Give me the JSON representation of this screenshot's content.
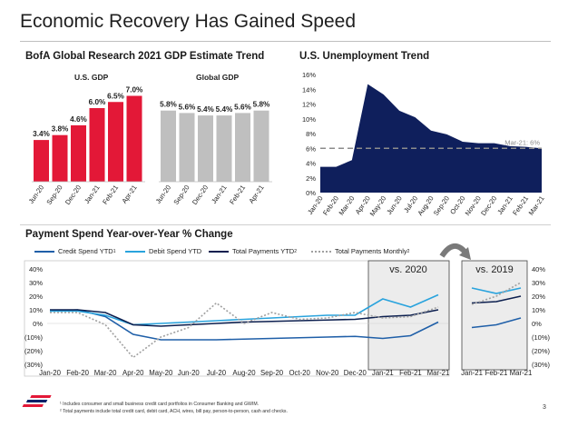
{
  "page": {
    "title": "Economic Recovery Has Gained Speed",
    "page_number": "3",
    "footnotes": [
      "¹ Includes consumer and small business credit card portfolios in Consumer Banking and GWIM.",
      "² Total payments include total credit card, debit card, ACH, wires, bill pay, person-to-person, cash and checks."
    ],
    "logo": "bank-of-america-flag-logo"
  },
  "gdp_section": {
    "heading": "BofA Global Research 2021 GDP Estimate Trend"
  },
  "unemp_section": {
    "heading": "U.S. Unemployment Trend"
  },
  "pay_section": {
    "heading": "Payment Spend Year-over-Year % Change"
  },
  "chart_data": [
    {
      "id": "us_gdp",
      "type": "bar",
      "title": "U.S. GDP",
      "categories": [
        "Jun-20",
        "Sep-20",
        "Dec-20",
        "Jan-21",
        "Feb-21",
        "Apr-21"
      ],
      "values": [
        3.4,
        3.8,
        4.6,
        6.0,
        6.5,
        7.0
      ],
      "data_labels": [
        "3.4%",
        "3.8%",
        "4.6%",
        "6.0%",
        "6.5%",
        "7.0%"
      ],
      "ylim": [
        0,
        8
      ],
      "color": "#e31837"
    },
    {
      "id": "global_gdp",
      "type": "bar",
      "title": "Global GDP",
      "categories": [
        "Jun-20",
        "Sep-20",
        "Dec-20",
        "Jan-21",
        "Feb-21",
        "Apr-21"
      ],
      "values": [
        5.8,
        5.6,
        5.4,
        5.4,
        5.6,
        5.8
      ],
      "data_labels": [
        "5.8%",
        "5.6%",
        "5.4%",
        "5.4%",
        "5.6%",
        "5.8%"
      ],
      "ylim": [
        0,
        8
      ],
      "color": "#bfbfbf"
    },
    {
      "id": "unemployment",
      "type": "area",
      "categories": [
        "Jan-20",
        "Feb-20",
        "Mar-20",
        "Apr-20",
        "May-20",
        "Jun-20",
        "Jul-20",
        "Aug-20",
        "Sep-20",
        "Oct-20",
        "Nov-20",
        "Dec-20",
        "Jan-21",
        "Feb-21",
        "Mar-21"
      ],
      "values": [
        3.5,
        3.5,
        4.4,
        14.7,
        13.3,
        11.1,
        10.2,
        8.4,
        7.9,
        6.9,
        6.7,
        6.7,
        6.3,
        6.2,
        6.0
      ],
      "yticks": [
        "0%",
        "2%",
        "4%",
        "6%",
        "8%",
        "10%",
        "12%",
        "14%",
        "16%"
      ],
      "ylim": [
        0,
        16
      ],
      "reference_line": {
        "value": 6,
        "label": "Mar-21: 6%"
      },
      "color": "#0f1f5c"
    },
    {
      "id": "payment_spend",
      "type": "line",
      "categories": [
        "Jan-20",
        "Feb-20",
        "Mar-20",
        "Apr-20",
        "May-20",
        "Jun-20",
        "Jul-20",
        "Aug-20",
        "Sep-20",
        "Oct-20",
        "Nov-20",
        "Dec-20",
        "Jan-21",
        "Feb-21",
        "Mar-21"
      ],
      "yticks": [
        "40%",
        "30%",
        "20%",
        "10%",
        "0%",
        "(10%)",
        "(20%)",
        "(30%)"
      ],
      "ylim": [
        -30,
        40
      ],
      "series": [
        {
          "name": "Credit Spend YTD",
          "sup": "1",
          "color": "#1f5fa8",
          "dash": "",
          "values": [
            9,
            10,
            5,
            -8,
            -12,
            -12,
            -12,
            -11.5,
            -11,
            -10.5,
            -10,
            -9.5,
            -11,
            -9,
            1
          ]
        },
        {
          "name": "Debit Spend YTD",
          "sup": "",
          "color": "#29a3dd",
          "dash": "",
          "values": [
            9,
            9,
            6,
            -1,
            0,
            1,
            2,
            3,
            4,
            5,
            6,
            6,
            18,
            12,
            21
          ]
        },
        {
          "name": "Total Payments YTD",
          "sup": "2",
          "color": "#0c1f4f",
          "dash": "",
          "values": [
            10,
            10,
            8,
            -1,
            -2,
            -1,
            0,
            1,
            1.5,
            2,
            2.5,
            3,
            5,
            6,
            10
          ]
        },
        {
          "name": "Total Payments Monthly",
          "sup": "2",
          "color": "#a0a0a0",
          "dash": "2,2",
          "values": [
            8,
            8,
            -1,
            -25,
            -10,
            -3,
            15,
            0,
            8,
            3,
            4,
            8,
            4,
            5,
            12
          ]
        }
      ],
      "highlight_label": "vs. 2020"
    },
    {
      "id": "payment_spend_vs2019",
      "type": "line",
      "title": "vs. 2019",
      "categories": [
        "Jan-21",
        "Feb-21",
        "Mar-21"
      ],
      "ylim": [
        -30,
        40
      ],
      "series": [
        {
          "name": "Credit Spend YTD",
          "color": "#1f5fa8",
          "dash": "",
          "values": [
            -3,
            -1,
            4
          ]
        },
        {
          "name": "Debit Spend YTD",
          "color": "#29a3dd",
          "dash": "",
          "values": [
            26,
            22,
            26
          ]
        },
        {
          "name": "Total Payments YTD",
          "color": "#0c1f4f",
          "dash": "",
          "values": [
            15,
            16,
            20
          ]
        },
        {
          "name": "Total Payments Monthly",
          "color": "#a0a0a0",
          "dash": "2,2",
          "values": [
            14,
            20,
            30
          ]
        }
      ]
    }
  ]
}
